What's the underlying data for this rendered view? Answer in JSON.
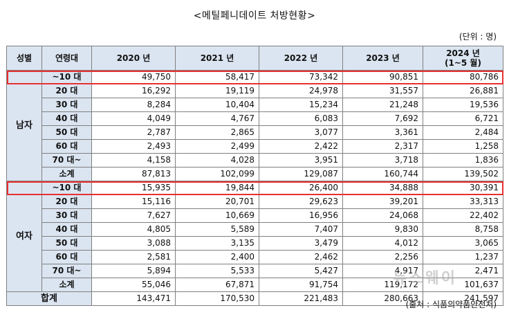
{
  "title": "<메틸페니데이트 처방현황>",
  "unit": "(단위 : 명)",
  "source": "(출처 : 식품의약품안전처)",
  "watermark": "뉴스웨이",
  "headers": {
    "sex": "성별",
    "age": "연령대",
    "years": [
      "2020 년",
      "2021 년",
      "2022 년",
      "2023 년"
    ],
    "last_year": "2024 년",
    "last_year_note": "(1~5 월)"
  },
  "groups": [
    {
      "label": "남자",
      "rows": [
        {
          "age": "~10 대",
          "values": [
            "49,750",
            "58,417",
            "73,342",
            "90,851",
            "80,786"
          ]
        },
        {
          "age": "20 대",
          "values": [
            "16,292",
            "19,119",
            "24,978",
            "31,557",
            "26,881"
          ]
        },
        {
          "age": "30 대",
          "values": [
            "8,284",
            "10,404",
            "15,234",
            "21,248",
            "19,536"
          ]
        },
        {
          "age": "40 대",
          "values": [
            "4,049",
            "4,767",
            "6,083",
            "7,692",
            "6,721"
          ]
        },
        {
          "age": "50 대",
          "values": [
            "2,787",
            "2,865",
            "3,077",
            "3,361",
            "2,484"
          ]
        },
        {
          "age": "60 대",
          "values": [
            "2,493",
            "2,499",
            "2,422",
            "2,317",
            "1,258"
          ]
        },
        {
          "age": "70 대~",
          "values": [
            "4,158",
            "4,028",
            "3,951",
            "3,718",
            "1,836"
          ]
        },
        {
          "age": "소계",
          "values": [
            "87,813",
            "102,099",
            "129,087",
            "160,744",
            "139,502"
          ]
        }
      ]
    },
    {
      "label": "여자",
      "rows": [
        {
          "age": "~10 대",
          "values": [
            "15,935",
            "19,844",
            "26,400",
            "34,888",
            "30,391"
          ]
        },
        {
          "age": "20 대",
          "values": [
            "15,116",
            "20,701",
            "29,623",
            "39,201",
            "33,313"
          ]
        },
        {
          "age": "30 대",
          "values": [
            "7,627",
            "10,669",
            "16,956",
            "24,068",
            "22,402"
          ]
        },
        {
          "age": "40 대",
          "values": [
            "4,805",
            "5,589",
            "7,407",
            "9,830",
            "8,758"
          ]
        },
        {
          "age": "50 대",
          "values": [
            "3,088",
            "3,135",
            "3,479",
            "4,012",
            "3,065"
          ]
        },
        {
          "age": "60 대",
          "values": [
            "2,581",
            "2,400",
            "2,462",
            "2,256",
            "1,237"
          ]
        },
        {
          "age": "70 대~",
          "values": [
            "5,894",
            "5,533",
            "5,427",
            "4,917",
            "2,471"
          ]
        },
        {
          "age": "소계",
          "values": [
            "55,046",
            "67,871",
            "91,754",
            "119,172",
            "101,637"
          ]
        }
      ]
    }
  ],
  "total": {
    "label": "합계",
    "values": [
      "143,471",
      "170,530",
      "221,483",
      "280,663",
      "241,597"
    ]
  },
  "highlight_rows": [
    "~10 대"
  ],
  "colors": {
    "header_bg": "#dbe5f1",
    "highlight": "#e8302f",
    "border": "#7f7f7f"
  }
}
